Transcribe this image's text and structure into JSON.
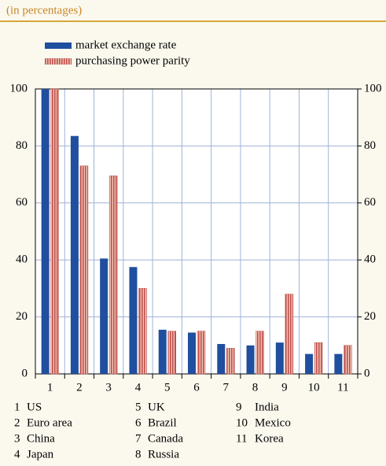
{
  "chart_data": {
    "type": "bar",
    "subtitle": "(in percentages)",
    "categories": [
      "1",
      "2",
      "3",
      "4",
      "5",
      "6",
      "7",
      "8",
      "9",
      "10",
      "11"
    ],
    "series": [
      {
        "name": "market exchange rate",
        "color": "#1f4f9e",
        "values": [
          100,
          83.5,
          40.5,
          37.5,
          15.5,
          14.5,
          10.5,
          10,
          11,
          7,
          7
        ]
      },
      {
        "name": "purchasing power parity",
        "color": "#c0504d",
        "values": [
          100,
          73,
          69.5,
          30,
          15,
          15,
          9,
          15,
          28,
          11,
          10
        ]
      }
    ],
    "ylim": [
      0,
      100
    ],
    "yticks": [
      0,
      20,
      40,
      60,
      80,
      100
    ],
    "y2lim": [
      0,
      100
    ],
    "y2ticks": [
      0,
      20,
      40,
      60,
      80,
      100
    ],
    "grid": true,
    "key": [
      {
        "number": "1",
        "name": "US"
      },
      {
        "number": "2",
        "name": "Euro area"
      },
      {
        "number": "3",
        "name": "China"
      },
      {
        "number": "4",
        "name": "Japan"
      },
      {
        "number": "5",
        "name": "UK"
      },
      {
        "number": "6",
        "name": "Brazil"
      },
      {
        "number": "7",
        "name": "Canada"
      },
      {
        "number": "8",
        "name": "Russia"
      },
      {
        "number": "9",
        "name": "India"
      },
      {
        "number": "10",
        "name": "Mexico"
      },
      {
        "number": "11",
        "name": "Korea"
      }
    ]
  }
}
